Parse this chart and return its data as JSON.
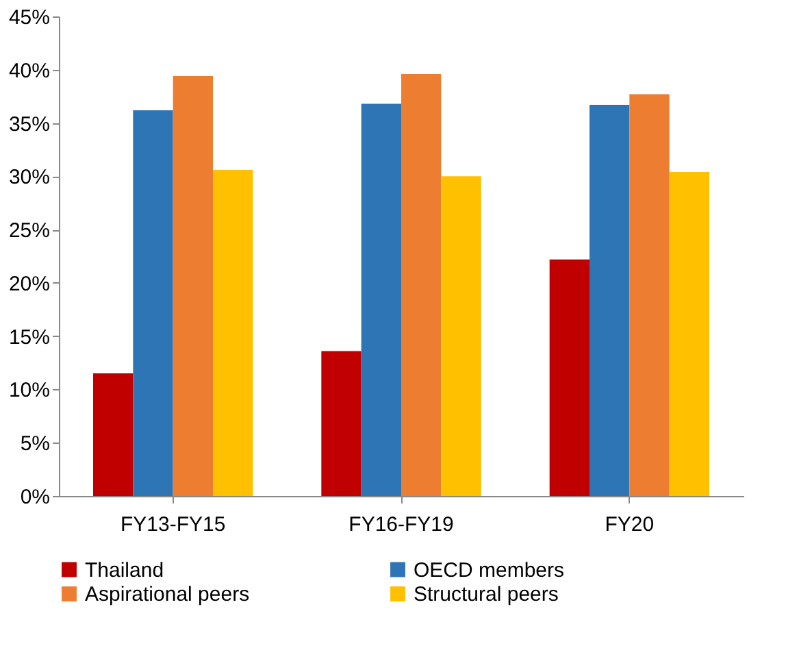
{
  "chart_data": {
    "type": "bar",
    "categories": [
      "FY13-FY15",
      "FY16-FY19",
      "FY20"
    ],
    "series": [
      {
        "name": "Thailand",
        "color": "#c00000",
        "values": [
          11.5,
          13.6,
          22.2
        ]
      },
      {
        "name": "OECD members",
        "color": "#2e75b6",
        "values": [
          36.2,
          36.8,
          36.7
        ]
      },
      {
        "name": "Aspirational peers",
        "color": "#ed7d31",
        "values": [
          39.4,
          39.6,
          37.7
        ]
      },
      {
        "name": "Structural peers",
        "color": "#ffc000",
        "values": [
          30.6,
          30.0,
          30.4
        ]
      }
    ],
    "ylim": [
      0,
      45
    ],
    "yticks": [
      {
        "value": 0,
        "label": "0%"
      },
      {
        "value": 5,
        "label": "5%"
      },
      {
        "value": 10,
        "label": "10%"
      },
      {
        "value": 15,
        "label": "15%"
      },
      {
        "value": 20,
        "label": "20%"
      },
      {
        "value": 25,
        "label": "25%"
      },
      {
        "value": 30,
        "label": "30%"
      },
      {
        "value": 35,
        "label": "35%"
      },
      {
        "value": 40,
        "label": "40%"
      },
      {
        "value": 45,
        "label": "45%"
      }
    ],
    "grid": false,
    "legend": "bottom"
  }
}
